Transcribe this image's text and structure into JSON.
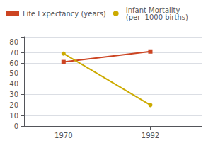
{
  "chart_data": {
    "type": "line",
    "x": [
      1970,
      1992
    ],
    "series": [
      {
        "name": "Life Expectancy (years)",
        "color": "#cc4422",
        "marker": "square",
        "values": [
          61,
          71
        ]
      },
      {
        "name": "Infant Mortality\n(per  1000 births)",
        "color": "#ccaa00",
        "marker": "circle",
        "values": [
          69,
          20
        ]
      }
    ],
    "xlim": [
      1960,
      2005
    ],
    "xticks": [
      1970,
      1992
    ],
    "ylim": [
      0,
      85
    ],
    "yticks": [
      0,
      10,
      20,
      30,
      40,
      50,
      60,
      70,
      80
    ],
    "grid": true,
    "legend": "top-left"
  }
}
